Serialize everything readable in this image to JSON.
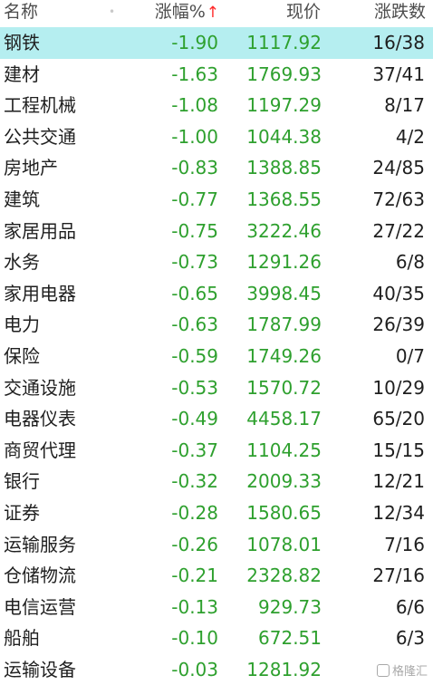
{
  "header": {
    "name": "名称",
    "dot": "•",
    "change": "涨幅%",
    "sort_arrow": "↑",
    "price": "现价",
    "count": "涨跌数"
  },
  "rows": [
    {
      "name": "钢铁",
      "change": "-1.90",
      "price": "1117.92",
      "count": "16/38"
    },
    {
      "name": "建材",
      "change": "-1.63",
      "price": "1769.93",
      "count": "37/41"
    },
    {
      "name": "工程机械",
      "change": "-1.08",
      "price": "1197.29",
      "count": "8/17"
    },
    {
      "name": "公共交通",
      "change": "-1.00",
      "price": "1044.38",
      "count": "4/2"
    },
    {
      "name": "房地产",
      "change": "-0.83",
      "price": "1388.85",
      "count": "24/85"
    },
    {
      "name": "建筑",
      "change": "-0.77",
      "price": "1368.55",
      "count": "72/63"
    },
    {
      "name": "家居用品",
      "change": "-0.75",
      "price": "3222.46",
      "count": "27/22"
    },
    {
      "name": "水务",
      "change": "-0.73",
      "price": "1291.26",
      "count": "6/8"
    },
    {
      "name": "家用电器",
      "change": "-0.65",
      "price": "3998.45",
      "count": "40/35"
    },
    {
      "name": "电力",
      "change": "-0.63",
      "price": "1787.99",
      "count": "26/39"
    },
    {
      "name": "保险",
      "change": "-0.59",
      "price": "1749.26",
      "count": "0/7"
    },
    {
      "name": "交通设施",
      "change": "-0.53",
      "price": "1570.72",
      "count": "10/29"
    },
    {
      "name": "电器仪表",
      "change": "-0.49",
      "price": "4458.17",
      "count": "65/20"
    },
    {
      "name": "商贸代理",
      "change": "-0.37",
      "price": "1104.25",
      "count": "15/15"
    },
    {
      "name": "银行",
      "change": "-0.32",
      "price": "2009.33",
      "count": "12/21"
    },
    {
      "name": "证券",
      "change": "-0.28",
      "price": "1580.65",
      "count": "12/34"
    },
    {
      "name": "运输服务",
      "change": "-0.26",
      "price": "1078.01",
      "count": "7/16"
    },
    {
      "name": "仓储物流",
      "change": "-0.21",
      "price": "2328.82",
      "count": "27/16"
    },
    {
      "name": "电信运营",
      "change": "-0.13",
      "price": "929.73",
      "count": "6/6"
    },
    {
      "name": "船舶",
      "change": "-0.10",
      "price": "672.51",
      "count": "6/3"
    },
    {
      "name": "运输设备",
      "change": "-0.03",
      "price": "1281.92",
      "count": ""
    }
  ],
  "selected_index": 0,
  "watermark": "格隆汇",
  "colors": {
    "down": "#2ea02e",
    "selected_row": "#b5eef0",
    "sort_arrow": "#ff2a2a"
  }
}
